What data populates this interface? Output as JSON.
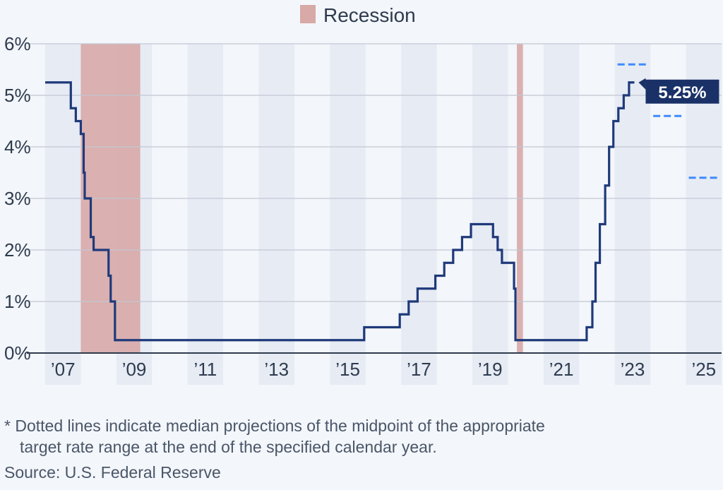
{
  "chart_data": {
    "type": "line",
    "legend": [
      {
        "label": "Recession",
        "color": "#d7a9a7"
      }
    ],
    "legend_placement": "top-center",
    "ylim": [
      0,
      6
    ],
    "y_ticks": [
      {
        "value": 0,
        "label": "0%"
      },
      {
        "value": 1,
        "label": "1%"
      },
      {
        "value": 2,
        "label": "2%"
      },
      {
        "value": 3,
        "label": "3%"
      },
      {
        "value": 4,
        "label": "4%"
      },
      {
        "value": 5,
        "label": "5%"
      },
      {
        "value": 6,
        "label": "6%"
      }
    ],
    "xlim": [
      2007.0,
      2026.0
    ],
    "x_ticks": [
      {
        "value": 2007,
        "label": "’07"
      },
      {
        "value": 2009,
        "label": "’09"
      },
      {
        "value": 2011,
        "label": "’11"
      },
      {
        "value": 2013,
        "label": "’13"
      },
      {
        "value": 2015,
        "label": "’15"
      },
      {
        "value": 2017,
        "label": "’17"
      },
      {
        "value": 2019,
        "label": "’19"
      },
      {
        "value": 2021,
        "label": "’21"
      },
      {
        "value": 2023,
        "label": "’23"
      },
      {
        "value": 2025,
        "label": "’25"
      }
    ],
    "grid": true,
    "recessions": [
      {
        "start": 2008.0,
        "end": 2009.67
      },
      {
        "start": 2020.25,
        "end": 2020.42
      }
    ],
    "series": [
      {
        "color": "#1f3a7a",
        "step": true,
        "points": [
          [
            2007.0,
            5.25
          ],
          [
            2007.72,
            4.75
          ],
          [
            2007.86,
            4.5
          ],
          [
            2008.0,
            4.25
          ],
          [
            2008.08,
            3.5
          ],
          [
            2008.11,
            3.0
          ],
          [
            2008.28,
            2.25
          ],
          [
            2008.36,
            2.0
          ],
          [
            2008.78,
            1.5
          ],
          [
            2008.84,
            1.0
          ],
          [
            2008.96,
            0.25
          ],
          [
            2015.96,
            0.5
          ],
          [
            2016.96,
            0.75
          ],
          [
            2017.21,
            1.0
          ],
          [
            2017.46,
            1.25
          ],
          [
            2017.96,
            1.5
          ],
          [
            2018.21,
            1.75
          ],
          [
            2018.46,
            2.0
          ],
          [
            2018.71,
            2.25
          ],
          [
            2018.96,
            2.5
          ],
          [
            2019.58,
            2.25
          ],
          [
            2019.71,
            2.0
          ],
          [
            2019.83,
            1.75
          ],
          [
            2020.17,
            1.25
          ],
          [
            2020.21,
            0.25
          ],
          [
            2022.21,
            0.5
          ],
          [
            2022.37,
            1.0
          ],
          [
            2022.46,
            1.75
          ],
          [
            2022.58,
            2.5
          ],
          [
            2022.73,
            3.25
          ],
          [
            2022.84,
            4.0
          ],
          [
            2022.96,
            4.5
          ],
          [
            2023.1,
            4.75
          ],
          [
            2023.25,
            5.0
          ],
          [
            2023.4,
            5.25
          ],
          [
            2023.55,
            5.25
          ]
        ]
      }
    ],
    "projections": [
      {
        "x_start": 2023.0,
        "x_end": 2024.0,
        "value": 5.6
      },
      {
        "x_start": 2024.0,
        "x_end": 2025.0,
        "value": 4.6
      },
      {
        "x_start": 2025.0,
        "x_end": 2026.0,
        "value": 3.4
      }
    ],
    "projection_color": "#3d8bfd",
    "callout": {
      "value": 5.25,
      "label": "5.25%",
      "color": "#1a3168"
    }
  },
  "footnote": {
    "line1": "* Dotted lines indicate median projections of the midpoint of the appropriate",
    "line2": "target rate range at the end of the specified calendar year."
  },
  "source": "Source: U.S. Federal Reserve"
}
